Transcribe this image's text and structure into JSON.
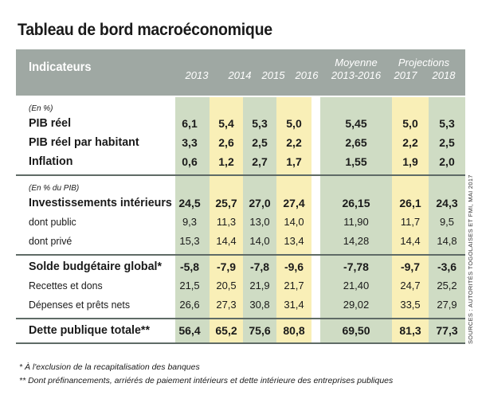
{
  "title": "Tableau de bord macroéconomique",
  "header": {
    "indicateurs": "Indicateurs",
    "moyenne": "Moyenne",
    "moyenne_range": "2013-2016",
    "projections": "Projections",
    "years": [
      "2013",
      "2014",
      "2015",
      "2016",
      "2017",
      "2018"
    ]
  },
  "sections": [
    {
      "unit": "(En %)",
      "rows": [
        {
          "label": "PIB réel",
          "bold": true,
          "values": [
            "6,1",
            "5,4",
            "5,3",
            "5,0",
            "5,45",
            "5,0",
            "5,3"
          ]
        },
        {
          "label": "PIB réel par habitant",
          "bold": true,
          "values": [
            "3,3",
            "2,6",
            "2,5",
            "2,2",
            "2,65",
            "2,2",
            "2,5"
          ]
        },
        {
          "label": "Inflation",
          "bold": true,
          "values": [
            "0,6",
            "1,2",
            "2,7",
            "1,7",
            "1,55",
            "1,9",
            "2,0"
          ]
        }
      ]
    },
    {
      "unit": "(En % du PIB)",
      "rows": [
        {
          "label": "Investissements intérieurs",
          "bold": true,
          "values": [
            "24,5",
            "25,7",
            "27,0",
            "27,4",
            "26,15",
            "26,1",
            "24,3"
          ]
        },
        {
          "label": "dont public",
          "bold": false,
          "values": [
            "9,3",
            "11,3",
            "13,0",
            "14,0",
            "11,90",
            "11,7",
            "9,5"
          ]
        },
        {
          "label": "dont privé",
          "bold": false,
          "values": [
            "15,3",
            "14,4",
            "14,0",
            "13,4",
            "14,28",
            "14,4",
            "14,8"
          ]
        }
      ]
    },
    {
      "unit": "",
      "rows": [
        {
          "label": "Solde budgétaire global*",
          "bold": true,
          "values": [
            "-5,8",
            "-7,9",
            "-7,8",
            "-9,6",
            "-7,78",
            "-9,7",
            "-3,6"
          ]
        },
        {
          "label": "Recettes et dons",
          "bold": false,
          "values": [
            "21,5",
            "20,5",
            "21,9",
            "21,7",
            "21,40",
            "24,7",
            "25,2"
          ]
        },
        {
          "label": "Dépenses et prêts nets",
          "bold": false,
          "values": [
            "26,6",
            "27,3",
            "30,8",
            "31,4",
            "29,02",
            "33,5",
            "27,9"
          ]
        }
      ]
    },
    {
      "unit": "",
      "rows": [
        {
          "label": "Dette publique totale**",
          "bold": true,
          "values": [
            "56,4",
            "65,2",
            "75,6",
            "80,8",
            "69,50",
            "81,3",
            "77,3"
          ]
        }
      ]
    }
  ],
  "source": "SOURCES : AUTORITÉS TOGOLAISES ET FMI, MAI 2017",
  "footnotes": [
    "* À l'exclusion de la recapitalisation des banques",
    "** Dont préfinancements, arriérés de paiement intérieurs et dette intérieure des entreprises publiques"
  ],
  "colors": {
    "header": "#9fa8a3",
    "green": "#cfdcc4",
    "yellow": "#f9efb7",
    "rule": "#5f6b66"
  }
}
